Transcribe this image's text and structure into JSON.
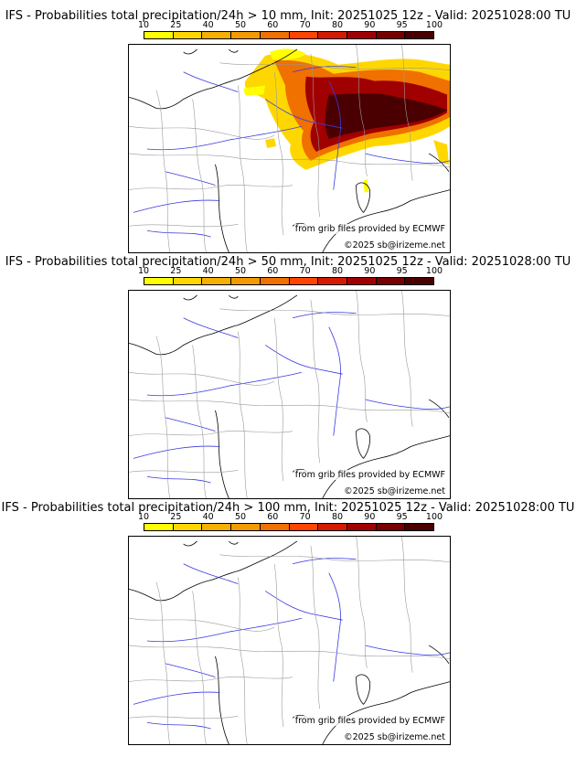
{
  "colorbar": {
    "labels": [
      "10",
      "25",
      "40",
      "50",
      "60",
      "70",
      "80",
      "90",
      "95",
      "100"
    ],
    "colors": [
      "#ffff00",
      "#ffd700",
      "#f5b000",
      "#f39a00",
      "#f07000",
      "#ff4500",
      "#d41a00",
      "#a00000",
      "#780000",
      "#4a0000"
    ]
  },
  "panels": [
    {
      "title": "IFS - Probabilities total precipitation/24h > 10 mm, Init: 20251025 12z - Valid: 20251028:00 TU",
      "credit_source": "from grib files provided by ECMWF",
      "credit_copy": "©2025 sb@irizeme.net",
      "has_precip": true
    },
    {
      "title": "IFS - Probabilities total precipitation/24h > 50 mm, Init: 20251025 12z - Valid: 20251028:00 TU",
      "credit_source": "from grib files provided by ECMWF",
      "credit_copy": "©2025 sb@irizeme.net",
      "has_precip": false
    },
    {
      "title": "IFS - Probabilities total precipitation/24h > 100 mm, Init: 20251025 12z - Valid: 20251028:00 TU",
      "credit_source": "from grib files provided by ECMWF",
      "credit_copy": "©2025 sb@irizeme.net",
      "has_precip": false
    }
  ]
}
